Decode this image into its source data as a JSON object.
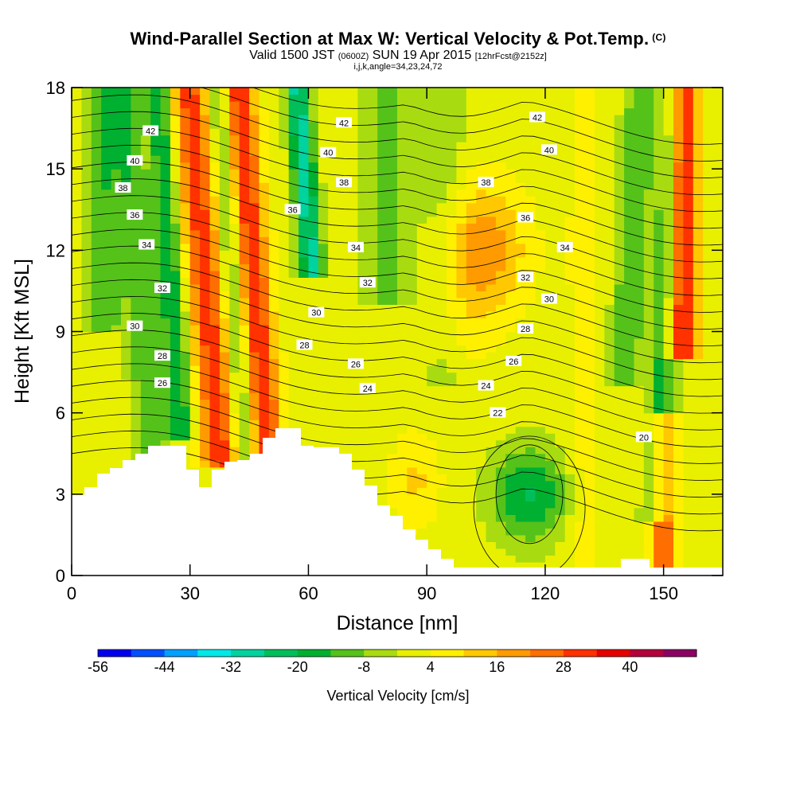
{
  "titles": {
    "main": "Wind-Parallel Section at Max W: Vertical Velocity & Pot.Temp.",
    "copyright": "(C)",
    "sub_valid": "Valid 1500 JST",
    "sub_utc": "(0600Z)",
    "sub_date": "SUN 19 Apr 2015",
    "sub_fcst": "[12hrFcst@2152z]",
    "indices": "i,j,k,angle=34,23,24,72"
  },
  "chart_data": {
    "type": "heatmap",
    "xlabel": "Distance [nm]",
    "ylabel": "Height [Kft MSL]",
    "xlim": [
      0,
      165
    ],
    "ylim": [
      0,
      18
    ],
    "x_ticks": [
      0,
      30,
      60,
      90,
      120,
      150
    ],
    "y_ticks": [
      0,
      3,
      6,
      9,
      12,
      15,
      18
    ],
    "colorbar": {
      "label": "Vertical Velocity [cm/s]",
      "levels": [
        -56,
        -50,
        -44,
        -38,
        -32,
        -26,
        -20,
        -14,
        -8,
        -2,
        4,
        10,
        16,
        22,
        28,
        34,
        40,
        46,
        52
      ],
      "tick_labels": [
        -56,
        -44,
        -32,
        -20,
        -8,
        4,
        16,
        28,
        40
      ],
      "colors": [
        "#0000f0",
        "#0050ff",
        "#00a0ff",
        "#00e8e8",
        "#00d2a0",
        "#00bf5a",
        "#00b030",
        "#55c21a",
        "#a8dc10",
        "#e8f000",
        "#fff000",
        "#ffc800",
        "#ff9b00",
        "#ff6e00",
        "#ff3200",
        "#e60000",
        "#b4003c",
        "#8c0064"
      ]
    },
    "theta_contour_labels": [
      {
        "x": 20,
        "y": 16.4,
        "v": "42"
      },
      {
        "x": 69,
        "y": 16.7,
        "v": "42"
      },
      {
        "x": 118,
        "y": 16.9,
        "v": "42"
      },
      {
        "x": 16,
        "y": 15.3,
        "v": "40"
      },
      {
        "x": 65,
        "y": 15.6,
        "v": "40"
      },
      {
        "x": 121,
        "y": 15.7,
        "v": "40"
      },
      {
        "x": 13,
        "y": 14.3,
        "v": "38"
      },
      {
        "x": 69,
        "y": 14.5,
        "v": "38"
      },
      {
        "x": 105,
        "y": 14.5,
        "v": "38"
      },
      {
        "x": 16,
        "y": 13.3,
        "v": "36"
      },
      {
        "x": 56,
        "y": 13.5,
        "v": "36"
      },
      {
        "x": 115,
        "y": 13.2,
        "v": "36"
      },
      {
        "x": 19,
        "y": 12.2,
        "v": "34"
      },
      {
        "x": 72,
        "y": 12.1,
        "v": "34"
      },
      {
        "x": 125,
        "y": 12.1,
        "v": "34"
      },
      {
        "x": 23,
        "y": 10.6,
        "v": "32"
      },
      {
        "x": 75,
        "y": 10.8,
        "v": "32"
      },
      {
        "x": 115,
        "y": 11.0,
        "v": "32"
      },
      {
        "x": 16,
        "y": 9.2,
        "v": "30"
      },
      {
        "x": 62,
        "y": 9.7,
        "v": "30"
      },
      {
        "x": 121,
        "y": 10.2,
        "v": "30"
      },
      {
        "x": 23,
        "y": 8.1,
        "v": "28"
      },
      {
        "x": 59,
        "y": 8.5,
        "v": "28"
      },
      {
        "x": 115,
        "y": 9.1,
        "v": "28"
      },
      {
        "x": 23,
        "y": 7.1,
        "v": "26"
      },
      {
        "x": 72,
        "y": 7.8,
        "v": "26"
      },
      {
        "x": 112,
        "y": 7.9,
        "v": "26"
      },
      {
        "x": 75,
        "y": 6.9,
        "v": "24"
      },
      {
        "x": 105,
        "y": 7.0,
        "v": "24"
      },
      {
        "x": 108,
        "y": 6.0,
        "v": "22"
      },
      {
        "x": 145,
        "y": 5.1,
        "v": "20"
      }
    ]
  }
}
